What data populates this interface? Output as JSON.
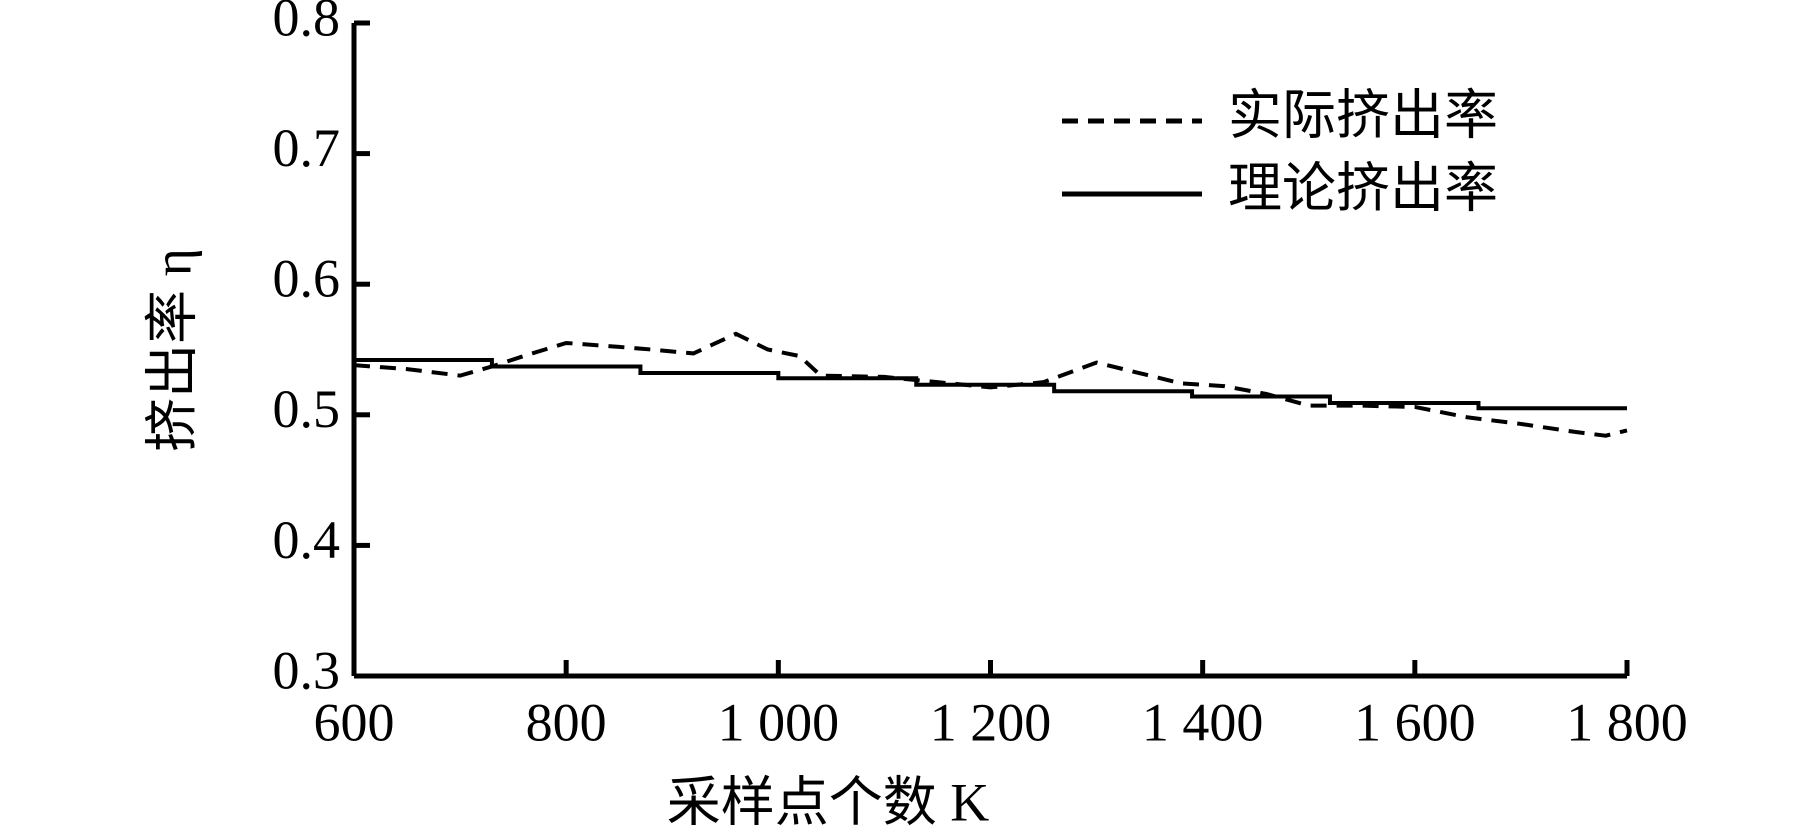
{
  "chart_data": {
    "type": "line",
    "xlabel": "采样点个数 K",
    "ylabel": "挤出率 η",
    "xlim": [
      600,
      1800
    ],
    "xticks": [
      600,
      800,
      {
        "value": 1000,
        "label": "1 000"
      },
      {
        "value": 1200,
        "label": "1 200"
      },
      {
        "value": 1400,
        "label": "1 400"
      },
      {
        "value": 1600,
        "label": "1 600"
      },
      {
        "value": 1800,
        "label": "1 800"
      }
    ],
    "ylim": [
      0.3,
      0.8
    ],
    "yticks": [
      0.3,
      0.4,
      0.5,
      0.6,
      0.7,
      0.8
    ],
    "series": [
      {
        "name": "实际挤出率",
        "color": "#000000",
        "dash": true,
        "x": [
          600,
          650,
          700,
          730,
          760,
          800,
          850,
          880,
          920,
          960,
          990,
          1020,
          1040,
          1100,
          1150,
          1200,
          1250,
          1300,
          1340,
          1380,
          1420,
          1460,
          1500,
          1550,
          1600,
          1650,
          1700,
          1750,
          1780,
          1800
        ],
        "values": [
          0.538,
          0.535,
          0.53,
          0.537,
          0.545,
          0.555,
          0.552,
          0.55,
          0.547,
          0.562,
          0.55,
          0.545,
          0.53,
          0.529,
          0.525,
          0.521,
          0.525,
          0.54,
          0.532,
          0.524,
          0.522,
          0.516,
          0.507,
          0.507,
          0.506,
          0.498,
          0.493,
          0.487,
          0.484,
          0.488
        ]
      },
      {
        "name": "理论挤出率",
        "color": "#000000",
        "dash": false,
        "x": [
          600,
          730,
          730,
          870,
          870,
          1000,
          1000,
          1130,
          1130,
          1260,
          1260,
          1390,
          1390,
          1520,
          1520,
          1660,
          1660,
          1800
        ],
        "values": [
          0.542,
          0.542,
          0.537,
          0.537,
          0.532,
          0.532,
          0.528,
          0.528,
          0.523,
          0.523,
          0.518,
          0.518,
          0.514,
          0.514,
          0.509,
          0.509,
          0.505,
          0.505
        ]
      }
    ]
  }
}
